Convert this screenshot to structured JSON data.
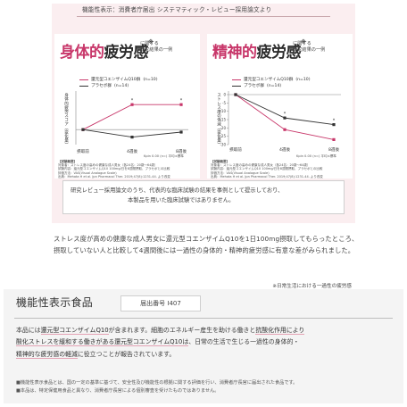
{
  "header": {
    "text": "機能性表示：消費者庁届出 システマティック・レビュー採用論文より"
  },
  "card_physical": {
    "title_em": "身体的",
    "title_rest": "疲労感",
    "sup": "※",
    "note_lines": [
      "に関する",
      "研究結果の一例"
    ],
    "legend": {
      "active": "還元型コエンザイムQ10群",
      "active_n": "(n=10)",
      "placebo": "プラセボ群",
      "placebo_n": "(n=14)"
    },
    "ylabel": "身体的疲労スコア（変化量）",
    "source": "Kpin 0.00 (n=) 平均±標準",
    "test_lines": [
      "【試験概要】",
      "対象者：ストレス度の高めの健康な成人男女（各24名：20歳～64歳）",
      "試験内容：還元型コエンザイムQ10 100mg/日を8週間摂取、プラセボとの比較",
      "評価方法：VAS(Visual Analogue Scale)",
      "出典：Mehata H et al. Jpn Pharmacol Ther. 2019;47(8):1231-44. より改変"
    ],
    "chart_data": {
      "type": "line",
      "categories": [
        "摂取前",
        "4週後",
        "8週後"
      ],
      "series": [
        {
          "name": "還元型コエンザイムQ10群",
          "values": [
            0,
            5,
            5
          ],
          "color": "#c8376a"
        },
        {
          "name": "プラセボ群",
          "values": [
            0,
            -1.5,
            -0.5
          ],
          "color": "#333333"
        }
      ],
      "ylim": [
        -3,
        7
      ],
      "annotations": [
        "*",
        "*"
      ]
    }
  },
  "card_mental": {
    "title_em": "精神的",
    "title_rest": "疲労感",
    "sup": "※",
    "note_lines": [
      "に関する",
      "研究結果の一例"
    ],
    "legend": {
      "active": "還元型コエンザイムQ10群",
      "active_n": "(n=10)",
      "placebo": "プラセボ群",
      "placebo_n": "(n=14)"
    },
    "ylabel": "ストレス度の低減（変化量）",
    "source": "Kpin 0.00 (n=) 平均±標準",
    "test_lines": [
      "【試験概要】",
      "対象者：ストレス度の高めの健康な成人男女（各24名：20歳～64歳）",
      "試験内容：還元型コエンザイムQ10 100mg/日を8週間摂取、プラセボとの比較",
      "評価方法：VAS(Visual Analogue Scale)",
      "出典：Mehata H et al. Jpn Pharmacol Ther. 2019;47(8):1231-44. より改変"
    ],
    "chart_data": {
      "type": "line",
      "categories": [
        "摂取前",
        "4週後",
        "8週後"
      ],
      "yticks": [
        0,
        -5,
        -10,
        -15,
        -20,
        -25,
        -30
      ],
      "series": [
        {
          "name": "還元型コエンザイムQ10群",
          "values": [
            0,
            -21,
            -27
          ],
          "color": "#c8376a"
        },
        {
          "name": "プラセボ群",
          "values": [
            0,
            -14,
            -18
          ],
          "color": "#333333"
        }
      ],
      "ylim": [
        -30,
        0
      ],
      "annotations": [
        "*",
        "*"
      ]
    }
  },
  "info_box": {
    "line1": "研究レビュー採用論文のうち、代表的な臨床試験の結果を事例として提示しており、",
    "line2": "本製品を用いた臨床試験ではありません。"
  },
  "body": {
    "paragraph": "ストレス度が高めの健康な成人男女に還元型コエンザイムQ10を1日100mg摂取してもらったところ、摂取していない人と比較して4週間後には一過性の身体的・精神的疲労感に有意な差がみられました。",
    "footnote": "※日常生活における一過性の疲労感"
  },
  "functional": {
    "title": "機能性表示食品",
    "badge": "届出番号 I407",
    "line1_a": "本品には",
    "line1_b": "還元型コエンザイムQ10",
    "line1_c": "が含まれます。細胞のエネルギー産生を助ける働きと",
    "line1_d": "抗酸化作用により",
    "line2_a": "酸化ストレスを緩和する働きがある還元型コエンザイムQ10は",
    "line2_b": "、日常の生活で生じる一過性の身体的・",
    "line3_a": "精神的な疲労感の軽減",
    "line3_b": "に役立つことが報告されています。",
    "notes": [
      "■機能性表示食品とは、国の一定の基準に基づて、安全性及び機能性の根拠に関する評価を行い、消費者庁長官に届出された食品です。",
      "■本品は、特定保健用食品と異なり、消費者庁長官による個別審査を受けたものではありません。"
    ]
  }
}
